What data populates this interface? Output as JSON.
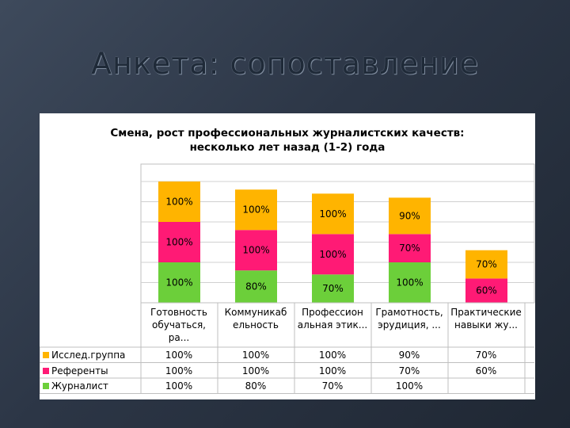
{
  "slide": {
    "title": "Анкета: сопоставление"
  },
  "chart_data": {
    "type": "bar",
    "stacked": true,
    "title_lines": [
      "Смена, рост профессиональных журналистских качеств:",
      "несколько лет назад (1-2) года"
    ],
    "categories": [
      "Готовность\nобучаться,\nра...",
      "Коммуникаб\nельность",
      "Профессион\nальная этик...",
      "Грамотность,\nэрудиция, ...",
      "Практические\nнавыки жу..."
    ],
    "series": [
      {
        "name": "Журналист",
        "color": "#6ccf3a",
        "values": [
          100,
          80,
          70,
          100,
          null
        ],
        "labels": [
          "100%",
          "80%",
          "70%",
          "100%",
          ""
        ]
      },
      {
        "name": "Референты",
        "color": "#ff1a75",
        "values": [
          100,
          100,
          100,
          70,
          60
        ],
        "labels": [
          "100%",
          "100%",
          "100%",
          "70%",
          "60%"
        ]
      },
      {
        "name": "Исслед.группа",
        "color": "#ffb400",
        "values": [
          100,
          100,
          100,
          90,
          70
        ],
        "labels": [
          "100%",
          "100%",
          "100%",
          "90%",
          "70%"
        ]
      }
    ],
    "legend_order": [
      "Исслед.группа",
      "Референты",
      "Журналист"
    ],
    "table_rows": [
      {
        "series": "Исслед.группа",
        "cells": [
          "100%",
          "100%",
          "100%",
          "90%",
          "70%"
        ]
      },
      {
        "series": "Референты",
        "cells": [
          "100%",
          "100%",
          "100%",
          "70%",
          "60%"
        ]
      },
      {
        "series": "Журналист",
        "cells": [
          "100%",
          "80%",
          "70%",
          "100%",
          ""
        ]
      }
    ],
    "grid": true,
    "legend_position": "bottom-left data table"
  }
}
